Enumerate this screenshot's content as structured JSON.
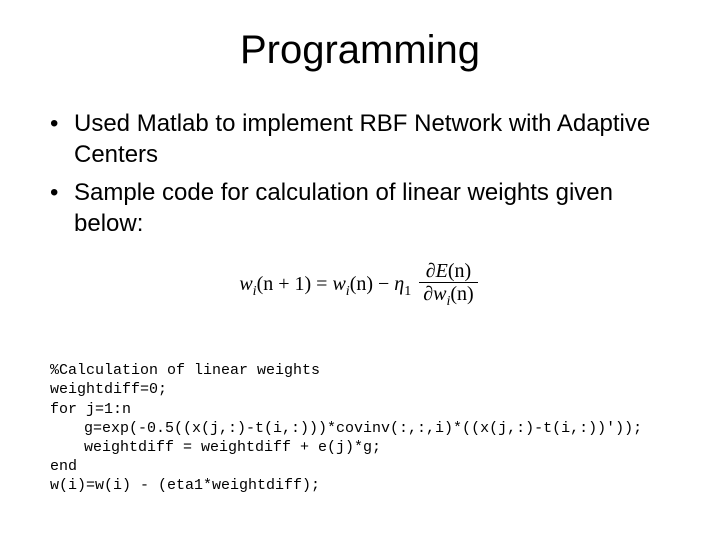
{
  "title": "Programming",
  "title_fontsize": 40,
  "body_fontsize": 24,
  "code_fontsize": 15,
  "background_color": "#ffffff",
  "text_color": "#000000",
  "font_family_body": "Arial",
  "font_family_code": "Courier New",
  "font_family_formula": "Times New Roman",
  "bullets": [
    "Used Matlab to implement RBF Network with Adaptive Centers",
    "Sample code for calculation of linear weights given below:"
  ],
  "formula": {
    "lhs": "w",
    "lhs_sub": "i",
    "lhs_arg": "(n + 1)",
    "rhs_a": "w",
    "rhs_a_sub": "i",
    "rhs_a_arg": "(n)",
    "minus": "−",
    "eta": "η",
    "eta_sub": "1",
    "frac_num_op": "∂",
    "frac_num_func": "E",
    "frac_num_arg": "(n)",
    "frac_den_op": "∂",
    "frac_den_var": "w",
    "frac_den_sub": "i",
    "frac_den_arg": "(n)"
  },
  "code": {
    "l1": "%Calculation of linear weights",
    "l2": "weightdiff=0;",
    "l3": "for j=1:n",
    "l4": "g=exp(-0.5((x(j,:)-t(i,:)))*covinv(:,:,i)*((x(j,:)-t(i,:))'));",
    "l5": "weightdiff = weightdiff + e(j)*g;",
    "l6": "end",
    "l7": "w(i)=w(i) - (eta1*weightdiff);"
  }
}
